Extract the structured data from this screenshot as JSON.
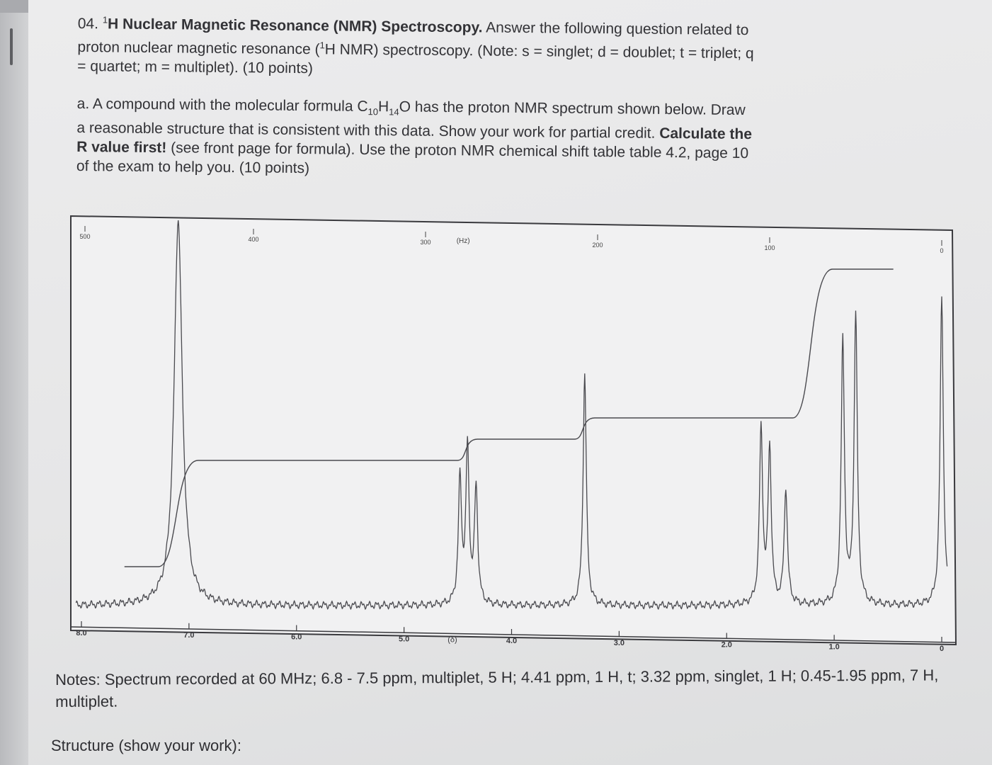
{
  "question": {
    "number": "04.",
    "title_sup": "1",
    "title": "H Nuclear Magnetic Resonance (NMR) Spectroscopy.",
    "line1_rest": "Answer the following question related to",
    "line2": "proton nuclear magnetic resonance (",
    "line2_sup": "1",
    "line2_rest": "H NMR) spectroscopy. (Note: s = singlet; d = doublet; t = triplet; q",
    "line3": "= quartet; m = multiplet). (10 points)"
  },
  "part_a": {
    "l1_a": "a. A compound with the molecular formula C",
    "l1_sub1": "10",
    "l1_b": "H",
    "l1_sub2": "14",
    "l1_c": "O has the proton NMR spectrum shown below. Draw",
    "l2_a": "a reasonable structure that is consistent with this data. Show your work for partial credit. ",
    "l2_bold": "Calculate the",
    "l3_bold": "R value first!",
    "l3_rest": " (see front page for formula). Use the proton NMR chemical shift table table 4.2, page 10",
    "l4": "of the exam to help you. (10 points)"
  },
  "chart_data": {
    "type": "line",
    "title": "",
    "top_axis_unit": "(Hz)",
    "top_ticks": [
      "500",
      "400",
      "300",
      "200",
      "100",
      "0"
    ],
    "bottom_axis_unit": "(δ)",
    "bottom_ticks": [
      "8.0",
      "7.0",
      "6.0",
      "5.0",
      "4.0",
      "3.0",
      "2.0",
      "1.0",
      "0"
    ],
    "xlim": [
      8.0,
      0
    ],
    "peaks_ppm": [
      {
        "shift": 7.1,
        "relative_height": 1.0
      },
      {
        "shift": 4.48,
        "relative_height": 0.32
      },
      {
        "shift": 4.41,
        "relative_height": 0.4
      },
      {
        "shift": 4.33,
        "relative_height": 0.3
      },
      {
        "shift": 3.32,
        "relative_height": 0.6
      },
      {
        "shift": 1.68,
        "relative_height": 0.45
      },
      {
        "shift": 1.6,
        "relative_height": 0.4
      },
      {
        "shift": 1.45,
        "relative_height": 0.3
      },
      {
        "shift": 0.92,
        "relative_height": 0.68
      },
      {
        "shift": 0.8,
        "relative_height": 0.75
      },
      {
        "shift": 0.0,
        "relative_height": 0.8
      }
    ],
    "integration_steps": [
      {
        "shift": 7.1,
        "protons": 5
      },
      {
        "shift": 4.41,
        "protons": 1
      },
      {
        "shift": 3.32,
        "protons": 1
      },
      {
        "shift": 1.2,
        "protons": 7
      }
    ]
  },
  "notes": "Notes: Spectrum recorded at 60 MHz; 6.8 - 7.5 ppm, multiplet, 5 H; 4.41 ppm, 1 H, t; 3.32 ppm, singlet, 1 H; 0.45-1.95 ppm, 7 H, multiplet.",
  "structure_label": "Structure (show your work):"
}
